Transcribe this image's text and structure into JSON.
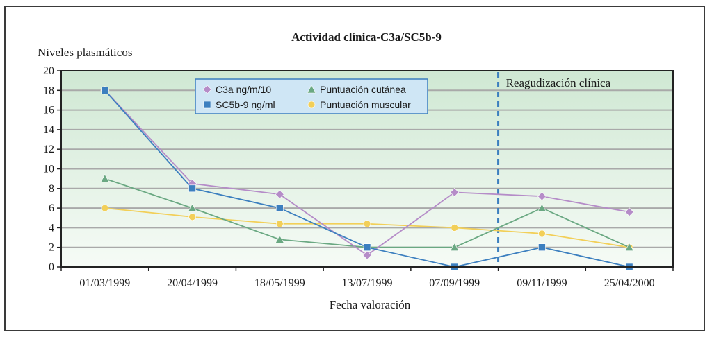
{
  "chart_data": {
    "type": "line",
    "title": "Actividad clínica-C3a/SC5b-9",
    "ylabel": "Niveles plasmáticos",
    "xlabel": "Fecha valoración",
    "ylim": [
      0,
      20
    ],
    "yticks": [
      0,
      2,
      4,
      6,
      8,
      10,
      12,
      14,
      16,
      18,
      20
    ],
    "categories": [
      "01/03/1999",
      "20/04/1999",
      "18/05/1999",
      "13/07/1999",
      "07/09/1999",
      "09/11/1999",
      "25/04/2000"
    ],
    "series": [
      {
        "name": "C3a ng/m/10",
        "marker": "diamond",
        "color": "#b58cc8",
        "values": [
          18,
          8.5,
          7.4,
          1.2,
          7.6,
          7.2,
          5.6
        ]
      },
      {
        "name": "SC5b-9 ng/ml",
        "marker": "square",
        "color": "#3c7fbf",
        "values": [
          18,
          8,
          6,
          2,
          0,
          2,
          0
        ]
      },
      {
        "name": "Puntuación cutánea",
        "marker": "triangle",
        "color": "#6aa882",
        "values": [
          9,
          6,
          2.8,
          2,
          2,
          6,
          2
        ]
      },
      {
        "name": "Puntuación muscular",
        "marker": "circle",
        "color": "#f2cf58",
        "values": [
          6,
          5.1,
          4.4,
          4.4,
          4,
          3.4,
          2
        ]
      }
    ],
    "annotation": {
      "text": "Reagudización clínica",
      "between_categories": [
        "07/09/1999",
        "09/11/1999"
      ],
      "style": "dashed-vertical"
    },
    "grid": true,
    "legend_placement": "top-center"
  }
}
